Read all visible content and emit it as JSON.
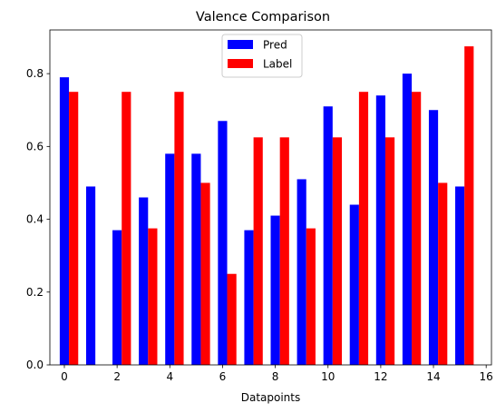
{
  "chart_data": {
    "type": "bar",
    "title": "Valence Comparison",
    "xlabel": "Datapoints",
    "ylabel": "",
    "x": [
      0,
      1,
      2,
      3,
      4,
      5,
      6,
      7,
      8,
      9,
      10,
      11,
      12,
      13,
      14,
      15
    ],
    "series": [
      {
        "name": "Pred",
        "color": "#0000ff",
        "values": [
          0.79,
          0.49,
          0.37,
          0.46,
          0.58,
          0.58,
          0.67,
          0.37,
          0.41,
          0.51,
          0.71,
          0.44,
          0.74,
          0.8,
          0.7,
          0.49
        ]
      },
      {
        "name": "Label",
        "color": "#ff0000",
        "values": [
          0.75,
          0.0,
          0.75,
          0.375,
          0.75,
          0.5,
          0.25,
          0.625,
          0.625,
          0.375,
          0.625,
          0.75,
          0.625,
          0.75,
          0.5,
          0.875
        ]
      }
    ],
    "xlim": [
      -0.55,
      16.2
    ],
    "ylim": [
      0,
      0.92
    ],
    "xticks": [
      "0",
      "2",
      "4",
      "6",
      "8",
      "10",
      "12",
      "14",
      "16"
    ],
    "yticks": [
      "0.0",
      "0.2",
      "0.4",
      "0.6",
      "0.8"
    ],
    "legend_position": "upper-center",
    "grid": false
  }
}
